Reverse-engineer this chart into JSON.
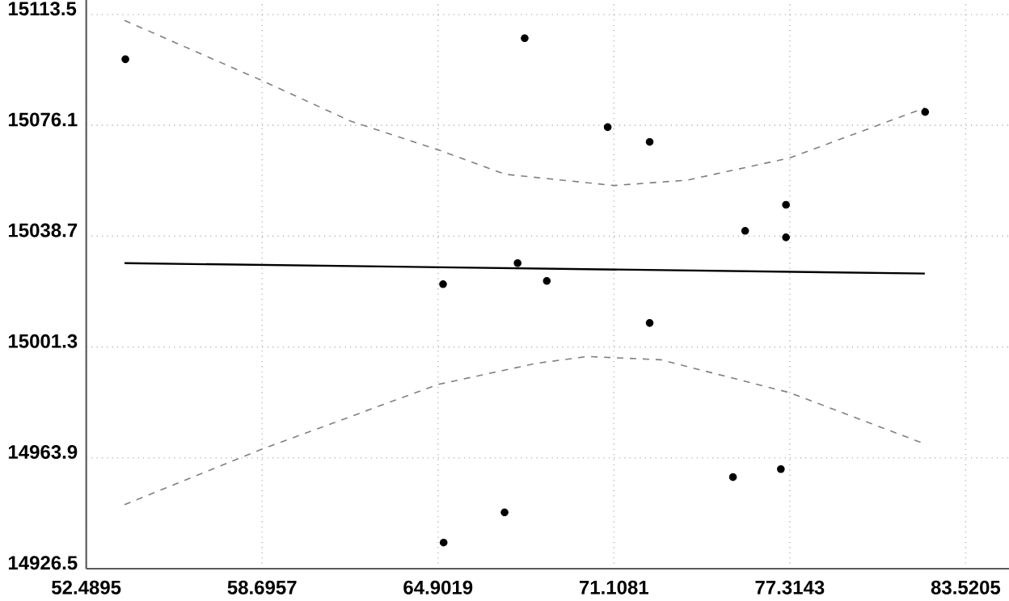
{
  "chart_data": {
    "type": "scatter",
    "grid": true,
    "xlim": [
      52.4895,
      85.05
    ],
    "ylim": [
      14926.5,
      15118.4
    ],
    "xticks": [
      52.4895,
      58.6957,
      64.9019,
      71.1081,
      77.3143,
      83.5205
    ],
    "yticks": [
      14926.5,
      14963.9,
      15001.3,
      15038.7,
      15076.1,
      15113.5
    ],
    "series": [
      {
        "type": "scatter",
        "marker": "circle",
        "color": "#000000",
        "x": [
          53.87,
          67.96,
          70.89,
          72.37,
          75.74,
          77.18,
          77.18,
          82.09,
          65.08,
          67.71,
          68.74,
          72.37,
          67.25,
          65.1,
          75.31,
          77.0
        ],
        "values": [
          15098.4,
          15105.5,
          15075.5,
          15070.5,
          15040.5,
          15049.3,
          15038.3,
          15080.6,
          15022.5,
          15029.6,
          15023.6,
          15009.4,
          14945.5,
          14935.3,
          14957.4,
          14960.1
        ]
      },
      {
        "type": "line",
        "color": "#000000",
        "line_style": "solid",
        "marker": "none",
        "x": [
          53.84,
          82.08
        ],
        "values": [
          15029.6,
          15026.1
        ]
      },
      {
        "type": "line",
        "color": "#808080",
        "line_style": "dashed",
        "marker": "none",
        "x": [
          53.84,
          58.67,
          61.8,
          64.92,
          67.27,
          71.11,
          73.69,
          77.31,
          82.08
        ],
        "values": [
          15111.5,
          15091.3,
          15077.6,
          15067.8,
          15059.6,
          15055.8,
          15057.6,
          15065.1,
          15082.0
        ]
      },
      {
        "type": "line",
        "color": "#808080",
        "line_style": "dashed",
        "marker": "none",
        "x": [
          53.84,
          58.67,
          64.92,
          68.37,
          70.18,
          72.76,
          77.31,
          82.08
        ],
        "values": [
          14948.1,
          14966.8,
          14988.7,
          14995.8,
          14998.1,
          14997.0,
          14985.9,
          14968.6
        ]
      }
    ]
  }
}
